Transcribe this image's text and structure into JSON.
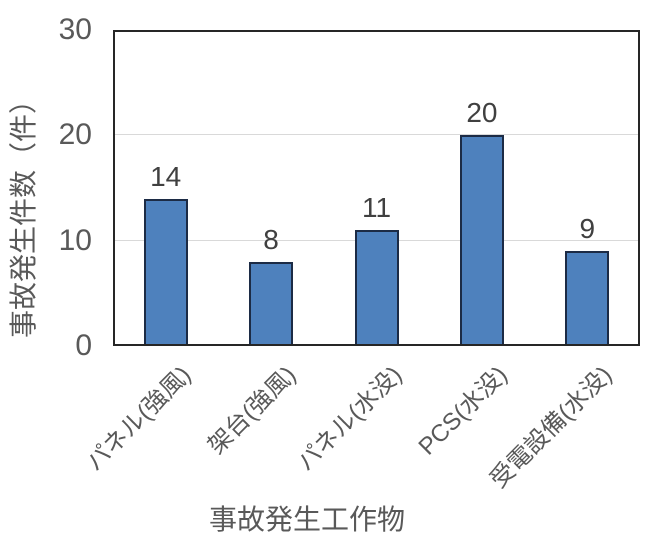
{
  "chart_data": {
    "type": "bar",
    "title": "",
    "categories": [
      "パネル(強風)",
      "架台(強風)",
      "パネル(水没)",
      "PCS(水没)",
      "受電設備(水没)"
    ],
    "values": [
      14,
      8,
      11,
      20,
      9
    ],
    "data_labels": [
      "14",
      "8",
      "11",
      "20",
      "9"
    ],
    "xlabel": "事故発生工作物",
    "ylabel": "事故発生件数（件）",
    "ylim": [
      0,
      30
    ],
    "yticks": [
      0,
      10,
      20,
      30
    ],
    "grid": "horizontal",
    "legend": false,
    "colors": {
      "bar_fill": "#4E81BD",
      "bar_border": "#1C2B45",
      "plot_frame": "#262626",
      "gridline": "#D9D9D9",
      "axis_text": "#595959",
      "value_label_text": "#404040",
      "background": "#FFFFFF"
    }
  }
}
